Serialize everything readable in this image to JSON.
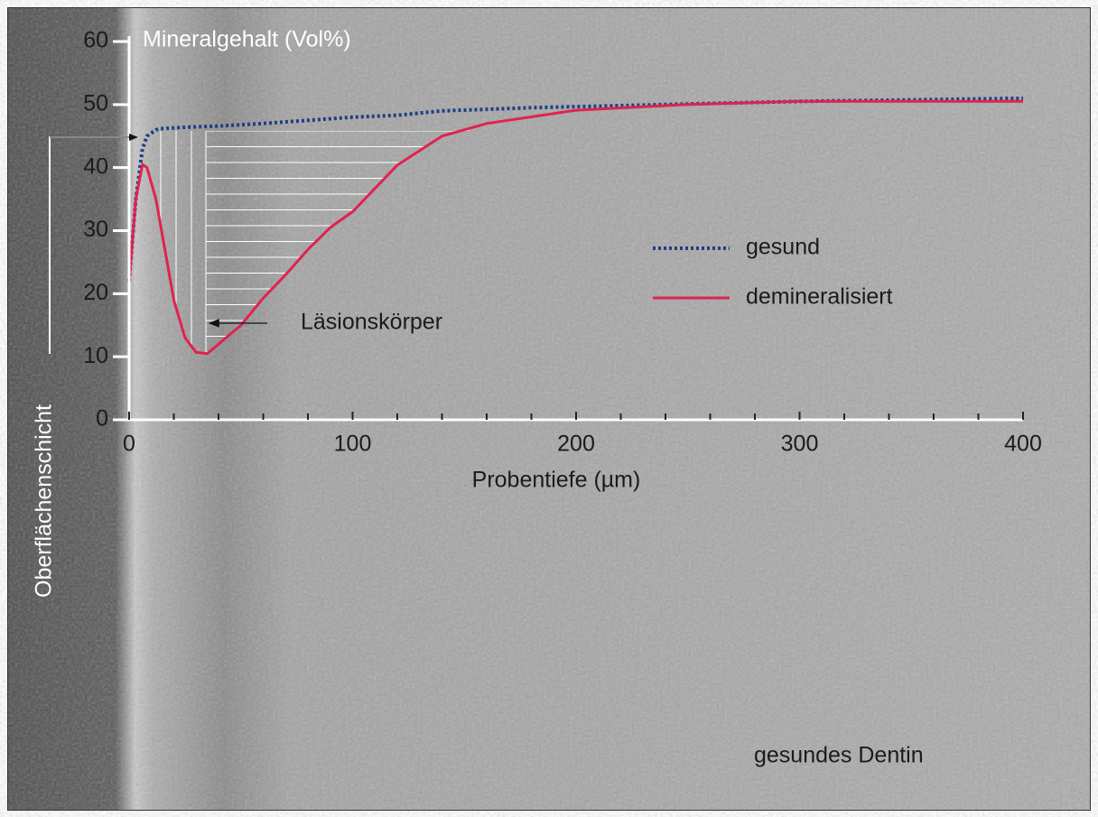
{
  "chart_data": {
    "type": "line",
    "y_label": "Mineralgehalt (Vol%)",
    "x_label": "Probentiefe (µm)",
    "xlim": [
      0,
      400
    ],
    "ylim": [
      0,
      60
    ],
    "xticks": [
      0,
      100,
      200,
      300,
      400
    ],
    "xminorticks": [
      20,
      40,
      60,
      80,
      120,
      140,
      160,
      180,
      220,
      240,
      260,
      280,
      320,
      340,
      360,
      380
    ],
    "yticks": [
      0,
      10,
      20,
      30,
      40,
      50,
      60
    ],
    "series": [
      {
        "name": "gesund",
        "color": "#1f3f86",
        "style": "dotted",
        "x": [
          0,
          3,
          6,
          8,
          12,
          15,
          25,
          40,
          60,
          80,
          100,
          120,
          140,
          180,
          240,
          300,
          400
        ],
        "values": [
          22,
          35,
          43,
          45,
          46,
          46.2,
          46.4,
          46.6,
          47,
          47.5,
          48,
          48.3,
          49,
          49.5,
          50,
          50.5,
          51
        ]
      },
      {
        "name": "demineralisiert",
        "color": "#e0234e",
        "style": "solid",
        "x": [
          0,
          3,
          6,
          8,
          12,
          16,
          20,
          25,
          30,
          35,
          40,
          50,
          60,
          70,
          80,
          90,
          100,
          120,
          140,
          160,
          200,
          250,
          300,
          400
        ],
        "values": [
          22,
          35,
          40.5,
          40,
          35,
          27,
          19,
          13,
          10.7,
          10.5,
          12,
          15,
          19.3,
          23,
          27,
          30.5,
          33,
          40.4,
          45,
          47,
          49.1,
          50,
          50.5,
          50.5
        ]
      }
    ],
    "annotations": {
      "surface_layer": "Oberflächenschicht",
      "lesion_body": "Läsionskörper",
      "background": "gesundes Dentin"
    }
  }
}
